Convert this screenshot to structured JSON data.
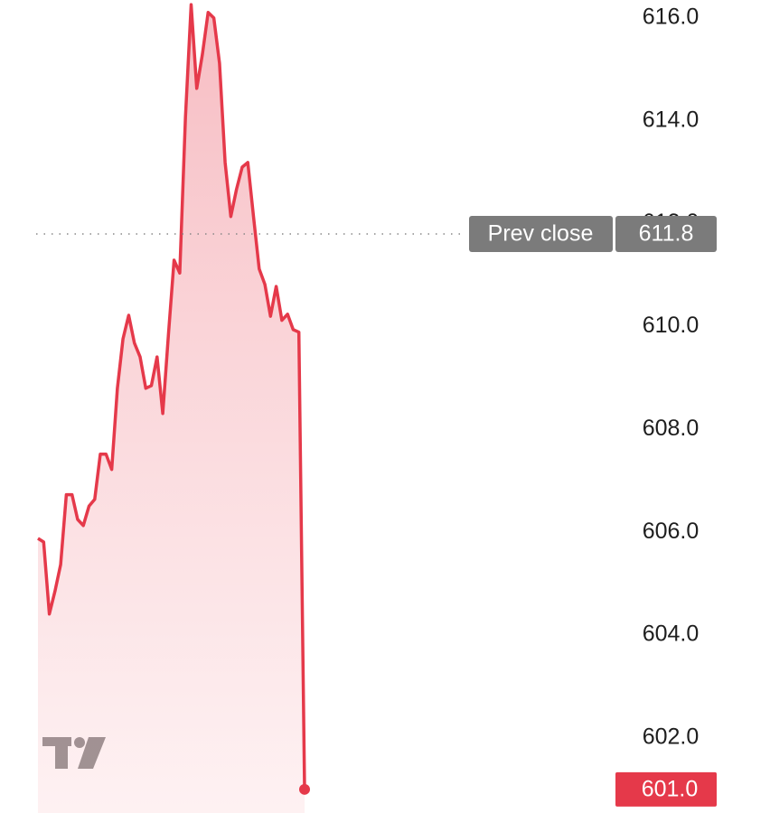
{
  "chart_data": {
    "type": "line",
    "values": [
      605.88,
      605.81,
      604.41,
      604.85,
      605.37,
      606.73,
      606.73,
      606.25,
      606.13,
      606.51,
      606.64,
      607.52,
      607.52,
      607.22,
      608.8,
      609.76,
      610.22,
      609.68,
      609.41,
      608.8,
      608.85,
      609.41,
      608.31,
      609.85,
      611.29,
      611.04,
      614.07,
      616.26,
      614.63,
      615.3,
      616.11,
      616.0,
      615.12,
      613.19,
      612.14,
      612.67,
      613.1,
      613.19,
      612.14,
      611.12,
      610.82,
      610.2,
      610.78,
      610.12,
      610.24,
      609.94,
      609.89,
      601.0
    ],
    "value_labels": [
      null,
      null,
      null,
      null,
      null,
      null,
      null,
      null,
      null,
      null,
      null,
      null,
      null,
      null,
      null,
      null,
      null,
      null,
      null,
      null,
      null,
      null,
      null,
      null,
      null,
      null,
      null,
      null,
      null,
      null,
      null,
      null,
      null,
      null,
      null,
      null,
      null,
      null,
      null,
      null,
      null,
      null,
      null,
      null,
      null,
      null,
      null,
      "601.0"
    ],
    "color": "#e5394a",
    "ylim": [
      600.54,
      616.35
    ],
    "yticks": [
      {
        "value": 602,
        "label": "602.0"
      },
      {
        "value": 604,
        "label": "604.0"
      },
      {
        "value": 606,
        "label": "606.0"
      },
      {
        "value": 608,
        "label": "608.0"
      },
      {
        "value": 610,
        "label": "610.0"
      },
      {
        "value": 612,
        "label": "612.0"
      },
      {
        "value": 614,
        "label": "614.0"
      },
      {
        "value": 616,
        "label": "616.0"
      }
    ],
    "prev_close": {
      "label": "Prev close",
      "value": 611.8,
      "value_label": "611.8"
    }
  }
}
